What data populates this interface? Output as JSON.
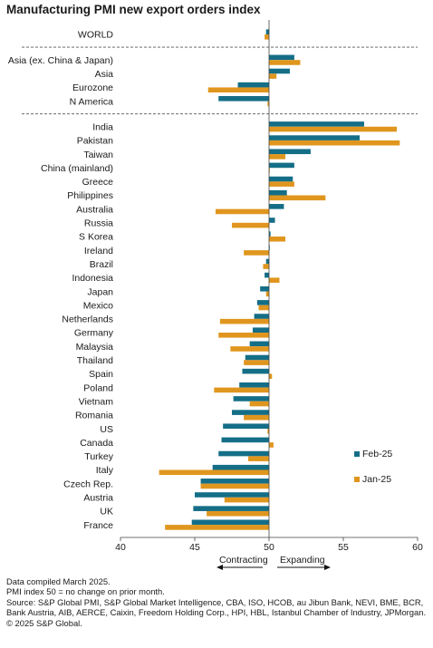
{
  "chart_data": {
    "type": "bar",
    "orientation": "horizontal",
    "title": "Manufacturing PMI new export orders index",
    "groups": [
      {
        "categories": [
          "WORLD"
        ]
      },
      {
        "categories": [
          "Asia (ex. China & Japan)",
          "Asia",
          "Eurozone",
          "N America"
        ]
      },
      {
        "categories": [
          "India",
          "Pakistan",
          "Taiwan",
          "China (mainland)",
          "Greece",
          "Philippines",
          "Australia",
          "Russia",
          "S Korea",
          "Ireland",
          "Brazil",
          "Indonesia",
          "Japan",
          "Mexico",
          "Netherlands",
          "Germany",
          "Malaysia",
          "Thailand",
          "Spain",
          "Poland",
          "Vietnam",
          "Romania",
          "US",
          "Canada",
          "Turkey",
          "Italy",
          "Czech Rep.",
          "Austria",
          "UK",
          "France"
        ]
      }
    ],
    "categories": [
      "WORLD",
      "Asia (ex. China & Japan)",
      "Asia",
      "Eurozone",
      "N America",
      "India",
      "Pakistan",
      "Taiwan",
      "China (mainland)",
      "Greece",
      "Philippines",
      "Australia",
      "Russia",
      "S Korea",
      "Ireland",
      "Brazil",
      "Indonesia",
      "Japan",
      "Mexico",
      "Netherlands",
      "Germany",
      "Malaysia",
      "Thailand",
      "Spain",
      "Poland",
      "Vietnam",
      "Romania",
      "US",
      "Canada",
      "Turkey",
      "Italy",
      "Czech Rep.",
      "Austria",
      "UK",
      "France"
    ],
    "series": [
      {
        "name": "Feb-25",
        "color": "#146e87",
        "values": [
          49.8,
          51.7,
          51.4,
          47.9,
          46.6,
          56.4,
          56.1,
          52.8,
          51.7,
          51.6,
          51.2,
          51.0,
          50.4,
          50.1,
          50.0,
          49.8,
          49.7,
          49.4,
          49.2,
          49.0,
          48.9,
          48.7,
          48.4,
          48.2,
          48.0,
          47.6,
          47.5,
          46.9,
          46.8,
          46.6,
          46.2,
          45.4,
          45.0,
          44.9,
          44.8
        ]
      },
      {
        "name": "Jan-25",
        "color": "#e0961e",
        "values": [
          49.7,
          52.1,
          50.5,
          45.9,
          49.9,
          58.6,
          58.8,
          51.1,
          50.0,
          51.7,
          53.8,
          46.4,
          47.5,
          51.1,
          48.3,
          49.6,
          50.7,
          49.8,
          49.3,
          46.7,
          46.6,
          47.4,
          48.3,
          50.2,
          46.3,
          48.7,
          48.3,
          49.9,
          50.3,
          48.6,
          42.6,
          45.4,
          47.0,
          45.8,
          43.0
        ]
      }
    ],
    "xlim": [
      40,
      60
    ],
    "xticks": [
      "40",
      "45",
      "50",
      "55",
      "60"
    ],
    "grid": false,
    "legend_position": "right",
    "direction_labels": {
      "left": "Contracting",
      "right": "Expanding"
    }
  },
  "footer": {
    "line1": "Data compiled March 2025.",
    "line2": "PMI index 50 = no change on prior month.",
    "line3": "Source: S&P Global PMI, S&P Global Market Intelligence, CBA, ISO, HCOB, au Jibun Bank, NEVI, BME, BCR,",
    "line4": "Bank Austria, AIB, AERCE, Caixin, Freedom Holding Corp., HPI, HBL, Istanbul Chamber of Industry, JPMorgan.",
    "line5": "© 2025 S&P Global."
  }
}
